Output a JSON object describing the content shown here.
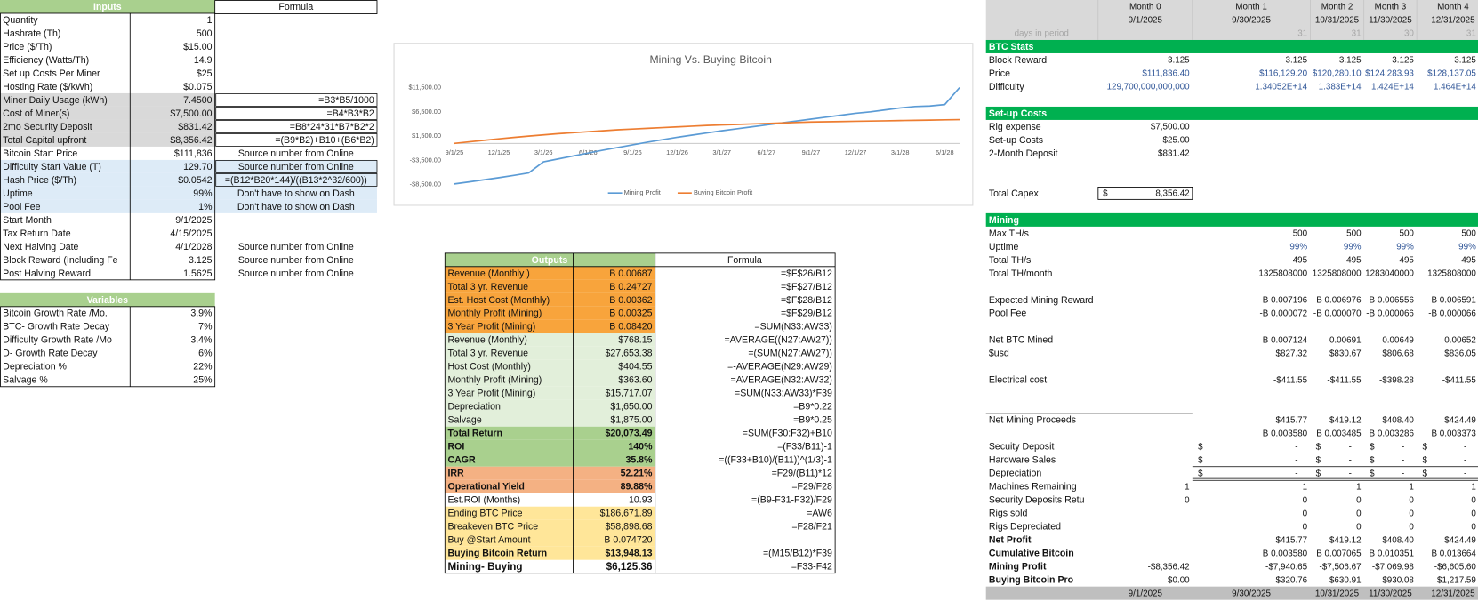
{
  "inputs": {
    "header": [
      "Inputs",
      "Formula"
    ],
    "rows": [
      [
        "Quantity",
        "1"
      ],
      [
        "Hashrate (Th)",
        "500"
      ],
      [
        "Price ($/Th)",
        "$15.00"
      ],
      [
        "Efficiency (Watts/Th)",
        "14.9"
      ],
      [
        "Set up Costs Per Miner",
        "$25"
      ],
      [
        "Hosting Rate ($/kWh)",
        "$0.075"
      ],
      [
        "Miner Daily Usage (kWh)",
        "7.4500",
        "=B3*B5/1000"
      ],
      [
        "Cost of Miner(s)",
        "$7,500.00",
        "=B4*B3*B2"
      ],
      [
        "2mo Security Deposit",
        "$831.42",
        "=B8*24*31*B7*B2*2"
      ],
      [
        "Total Capital upfront",
        "$8,356.42",
        "=(B9*B2)+B10+(B6*B2)"
      ],
      [
        "Bitcoin Start Price",
        "$111,836",
        "Source number from Online"
      ],
      [
        "Difficulty Start Value (T)",
        "129.70",
        "Source number from Online"
      ],
      [
        "Hash Price ($/Th)",
        "$0.0542",
        "=(B12*B20*144)/((B13*2^32/600))"
      ],
      [
        "Uptime",
        "99%",
        "Don't have to show on Dash"
      ],
      [
        "Pool Fee",
        "1%",
        "Don't have to show on Dash"
      ],
      [
        "Start Month",
        "9/1/2025"
      ],
      [
        "Tax Return Date",
        "4/15/2025"
      ],
      [
        "Next Halving Date",
        "4/1/2028",
        "Source number from Online"
      ],
      [
        "Block Reward (Including Fe",
        "3.125",
        "Source number from Online"
      ],
      [
        "Post Halving Reward",
        "1.5625",
        "Source number from Online"
      ]
    ]
  },
  "variables": {
    "header": "Variables",
    "rows": [
      [
        "Bitcoin Growth Rate /Mo.",
        "3.9%"
      ],
      [
        "BTC- Growth Rate Decay",
        "7%"
      ],
      [
        "Difficulty Growth Rate /Mo",
        "3.4%"
      ],
      [
        "D- Growth Rate Decay",
        "6%"
      ],
      [
        "Depreciation %",
        "22%"
      ],
      [
        "Salvage %",
        "25%"
      ]
    ]
  },
  "outputs": {
    "header": [
      "Outputs",
      "Formula"
    ],
    "rows": [
      [
        "Revenue (Monthly )",
        "B 0.00687",
        "=$F$26/B12"
      ],
      [
        "Total 3 yr. Revenue",
        "B 0.24727",
        "=$F$27/B12"
      ],
      [
        "Est. Host Cost (Monthly)",
        "B 0.00362",
        "=$F$28/B12"
      ],
      [
        "Monthly Profit (Mining)",
        "B 0.00325",
        "=$F$29/B12"
      ],
      [
        "3 Year Profit (Mining)",
        "B 0.08420",
        "=SUM(N33:AW33)"
      ],
      [
        "Revenue (Monthly)",
        "$768.15",
        "=AVERAGE((N27:AW27))"
      ],
      [
        "Total 3 yr. Revenue",
        "$27,653.38",
        "=(SUM(N27:AW27))"
      ],
      [
        "Host Cost (Monthly)",
        "$404.55",
        "=-AVERAGE(N29:AW29)"
      ],
      [
        "Monthly Profit (Mining)",
        "$363.60",
        "=AVERAGE(N32:AW32)"
      ],
      [
        "3 Year Profit (Mining)",
        "$15,717.07",
        "=SUM(N33:AW33)*F39"
      ],
      [
        "Depreciation",
        "$1,650.00",
        "=B9*0.22"
      ],
      [
        "Salvage",
        "$1,875.00",
        "=B9*0.25"
      ],
      [
        "Total Return",
        "$20,073.49",
        "=SUM(F30:F32)+B10"
      ],
      [
        "ROI",
        "140%",
        "=(F33/B11)-1"
      ],
      [
        "CAGR",
        "35.8%",
        "=((F33+B10)/(B11))^(1/3)-1"
      ],
      [
        "IRR",
        "52.21%",
        "=F29/(B11)*12"
      ],
      [
        "Operational Yield",
        "89.88%",
        "=F29/F28"
      ],
      [
        "Est.ROI (Months)",
        "10.93",
        "=(B9-F31-F32)/F29"
      ],
      [
        "Ending BTC Price",
        "$186,671.89",
        "=AW6"
      ],
      [
        "Breakeven BTC Price",
        "$58,898.68",
        "=F28/F21"
      ],
      [
        "Buy @Start Amount",
        "B 0.074720"
      ],
      [
        "Buying Bitcoin Return",
        "$13,948.13",
        "=(M15/B12)*F39"
      ],
      [
        "Mining- Buying",
        "$6,125.36",
        "=F33-F42"
      ]
    ]
  },
  "chart_data": {
    "type": "line",
    "title": "Mining Vs. Buying Bitcoin",
    "categories": [
      "9/1/25",
      null,
      null,
      "12/1/25",
      null,
      null,
      "3/1/26",
      null,
      null,
      "6/1/26",
      null,
      null,
      "9/1/26",
      null,
      null,
      "12/1/26",
      null,
      null,
      "3/1/27",
      null,
      null,
      "6/1/27",
      null,
      null,
      "9/1/27",
      null,
      null,
      "12/1/27",
      null,
      null,
      "3/1/28",
      null,
      null,
      "6/1/28",
      null
    ],
    "series": [
      {
        "name": "Mining Profit",
        "color": "#5b9bd5",
        "values": [
          -8356,
          -7941,
          -7507,
          -7070,
          -6606,
          -6100,
          -3800,
          -3200,
          -2600,
          -2000,
          -1400,
          -850,
          -300,
          250,
          750,
          1250,
          1700,
          2150,
          2600,
          3000,
          3400,
          3800,
          4200,
          4600,
          5000,
          5400,
          5800,
          6200,
          6500,
          6900,
          7300,
          7600,
          7700,
          8000,
          11500
        ]
      },
      {
        "name": "Buying Bitcoin Profit",
        "color": "#ed7d31",
        "values": [
          0,
          321,
          631,
          930,
          1218,
          1500,
          1750,
          2000,
          2200,
          2400,
          2600,
          2800,
          2950,
          3100,
          3250,
          3400,
          3550,
          3700,
          3800,
          3900,
          4000,
          4100,
          4200,
          4300,
          4400,
          4450,
          4500,
          4550,
          4600,
          4650,
          4700,
          4750,
          4800,
          4850,
          4900
        ]
      }
    ],
    "ylim": [
      -8500,
      11500
    ],
    "yticks": [
      {
        "value": 11500,
        "label": "$11,500.00"
      },
      {
        "value": 6500,
        "label": "$6,500.00"
      },
      {
        "value": 1500,
        "label": "$1,500.00"
      },
      {
        "value": -3500,
        "label": "-$3,500.00"
      },
      {
        "value": -8500,
        "label": "-$8,500.00"
      }
    ],
    "grid": false,
    "legend": "bottom"
  },
  "sheet": {
    "rows": [
      {
        "values": [
          "Month 0",
          "Month 1",
          "Month 2",
          "Month 3",
          "Month 4"
        ]
      },
      {
        "values": [
          "9/1/2025",
          "9/30/2025",
          "10/31/2025",
          "11/30/2025",
          "12/31/2025"
        ]
      },
      {
        "label": "days in period",
        "values": [
          null,
          "31",
          "31",
          "30",
          "31"
        ]
      },
      {
        "label": "BTC Stats"
      },
      {
        "label": "Block Reward",
        "values": [
          "3.125",
          "3.125",
          "3.125",
          "3.125",
          "3.125"
        ]
      },
      {
        "label": "Price",
        "values": [
          "$111,836.40",
          "$116,129.20",
          "$120,280.10",
          "$124,283.93",
          "$128,137.05"
        ]
      },
      {
        "label": "Difficulty",
        "values": [
          "129,700,000,000,000",
          "1.34052E+14",
          "1.383E+14",
          "1.424E+14",
          "1.464E+14"
        ]
      },
      {
        "label": "Set-up Costs"
      },
      {
        "label": "Rig expense",
        "values": [
          "$7,500.00",
          null,
          null,
          null,
          null
        ]
      },
      {
        "label": "Set-up Costs",
        "values": [
          "$25.00",
          null,
          null,
          null,
          null
        ]
      },
      {
        "label": "2-Month Deposit",
        "values": [
          "$831.42",
          null,
          null,
          null,
          null
        ]
      },
      {
        "label": "Total Capex",
        "prefix": "$",
        "values": [
          "8,356.42",
          null,
          null,
          null,
          null
        ]
      },
      {
        "label": "Mining"
      },
      {
        "label": "Max TH/s",
        "values": [
          null,
          "500",
          "500",
          "500",
          "500"
        ]
      },
      {
        "label": "Uptime",
        "values": [
          null,
          "99%",
          "99%",
          "99%",
          "99%"
        ]
      },
      {
        "label": "Total TH/s",
        "values": [
          null,
          "495",
          "495",
          "495",
          "495"
        ]
      },
      {
        "label": "Total TH/month",
        "values": [
          null,
          "1325808000",
          "1325808000",
          "1283040000",
          "1325808000"
        ]
      },
      {
        "label": "Expected Mining Reward",
        "values": [
          null,
          "B 0.007196",
          "B 0.006976",
          "B 0.006556",
          "B 0.006591"
        ]
      },
      {
        "label": "Pool Fee",
        "values": [
          null,
          "-B 0.000072",
          "-B 0.000070",
          "-B 0.000066",
          "-B 0.000066"
        ]
      },
      {
        "label": "Net BTC Mined",
        "values": [
          null,
          "B 0.007124",
          "0.00691",
          "0.00649",
          "0.00652"
        ]
      },
      {
        "label": "$usd",
        "values": [
          null,
          "$827.32",
          "$830.67",
          "$806.68",
          "$836.05"
        ]
      },
      {
        "label": "Electrical cost",
        "values": [
          null,
          "-$411.55",
          "-$411.55",
          "-$398.28",
          "-$411.55"
        ]
      },
      {
        "label": "Net Mining Proceeds",
        "values": [
          null,
          "$415.77",
          "$419.12",
          "$408.40",
          "$424.49"
        ]
      },
      {
        "values": [
          null,
          "B 0.003580",
          "B 0.003485",
          "B 0.003286",
          "B 0.003373"
        ]
      },
      {
        "label": "Secuity Deposit",
        "values": [
          null,
          {
            "symbol": "$",
            "value": "-"
          },
          {
            "symbol": "$",
            "value": "-"
          },
          {
            "symbol": "$",
            "value": "-"
          },
          {
            "symbol": "$",
            "value": "-"
          }
        ]
      },
      {
        "label": "Hardware Sales",
        "values": [
          null,
          {
            "symbol": "$",
            "value": "-"
          },
          {
            "symbol": "$",
            "value": "-"
          },
          {
            "symbol": "$",
            "value": "-"
          },
          {
            "symbol": "$",
            "value": "-"
          }
        ]
      },
      {
        "label": "Depreciation",
        "values": [
          null,
          {
            "symbol": "$",
            "value": "-"
          },
          {
            "symbol": "$",
            "value": "-"
          },
          {
            "symbol": "$",
            "value": "-"
          },
          {
            "symbol": "$",
            "value": "-"
          }
        ]
      },
      {
        "label": "Machines Remaining",
        "values": [
          "1",
          "1",
          "1",
          "1",
          "1"
        ]
      },
      {
        "label": "Security Deposits Retu",
        "values": [
          "0",
          "0",
          "0",
          "0",
          "0"
        ]
      },
      {
        "label": "Rigs sold",
        "values": [
          null,
          "0",
          "0",
          "0",
          "0"
        ]
      },
      {
        "label": "Rigs Depreciated",
        "values": [
          null,
          "0",
          "0",
          "0",
          "0"
        ]
      },
      {
        "label": "Net Profit",
        "values": [
          null,
          "$415.77",
          "$419.12",
          "$408.40",
          "$424.49"
        ]
      },
      {
        "label": "Cumulative Bitcoin",
        "values": [
          null,
          "B 0.003580",
          "B 0.007065",
          "B 0.010351",
          "B 0.013664"
        ]
      },
      {
        "label": "Mining Profit",
        "values": [
          "-$8,356.42",
          "-$7,940.65",
          "-$7,506.67",
          "-$7,069.98",
          "-$6,605.60"
        ]
      },
      {
        "label": "Buying Bitcoin Pro",
        "values": [
          "$0.00",
          "$320.76",
          "$630.91",
          "$930.08",
          "$1,217.59"
        ]
      },
      {
        "values": [
          "9/1/2025",
          "9/30/2025",
          "10/31/2025",
          "11/30/2025",
          "12/31/2025"
        ]
      }
    ]
  }
}
